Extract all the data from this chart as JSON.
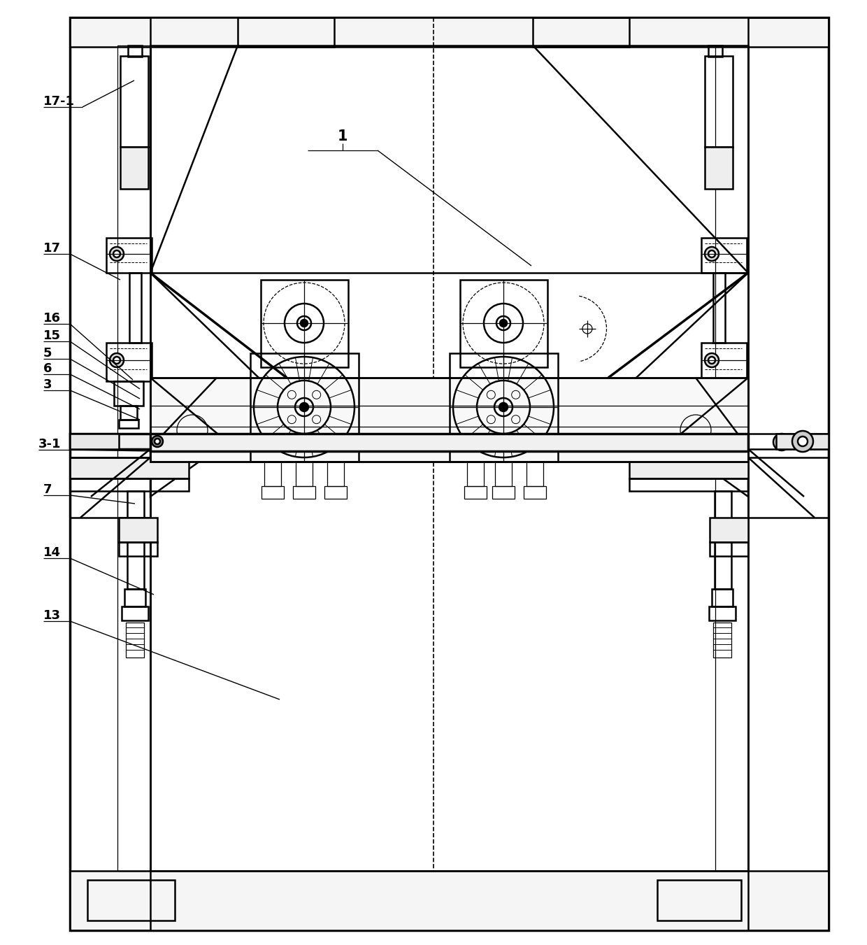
{
  "bg_color": "#ffffff",
  "fig_width": 12.4,
  "fig_height": 13.51,
  "dpi": 100
}
